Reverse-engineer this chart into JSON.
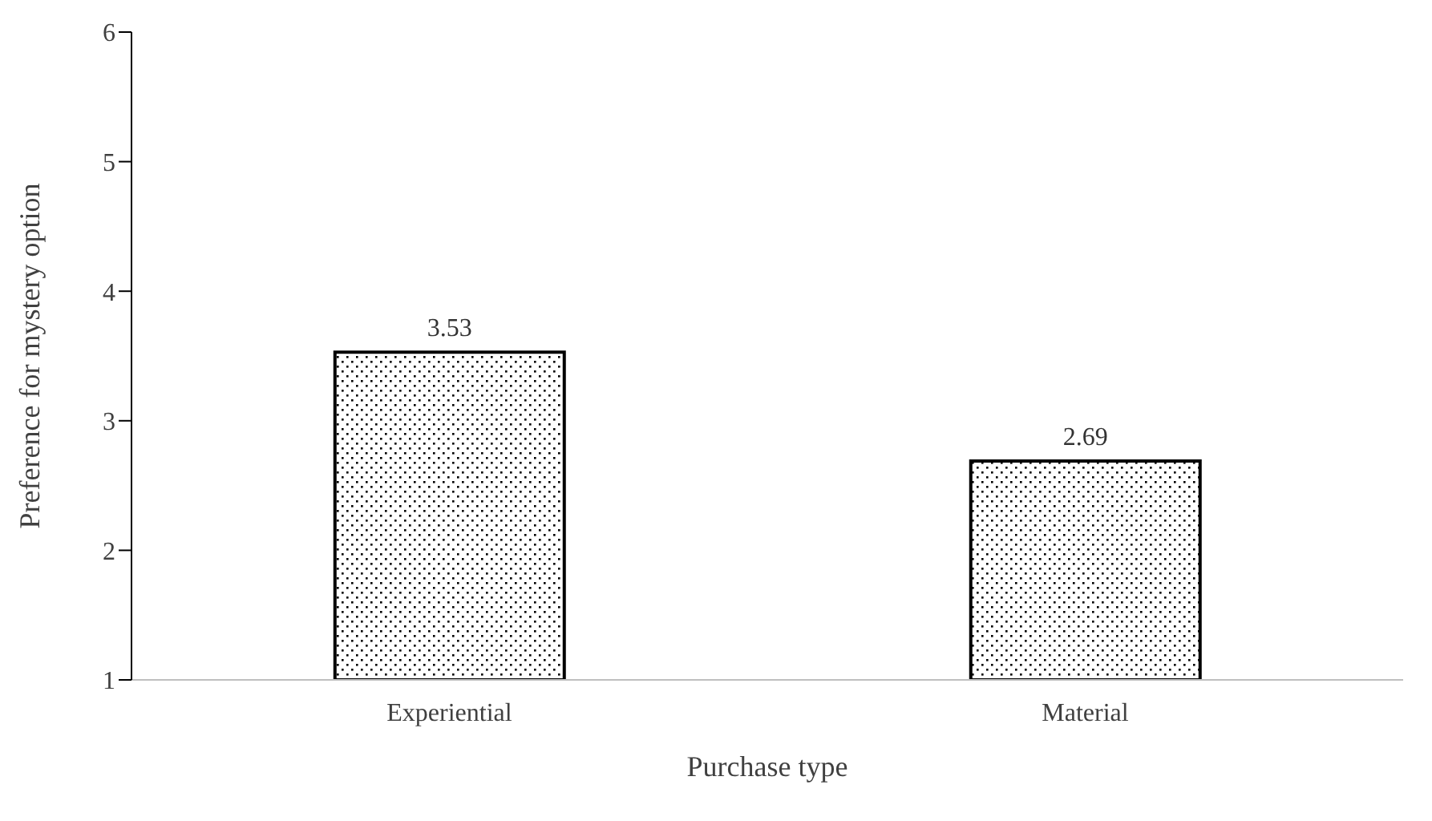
{
  "chart_data": {
    "type": "bar",
    "xlabel": "Purchase type",
    "ylabel": "Preference for mystery option",
    "categories": [
      "Experiential",
      "Material"
    ],
    "values": [
      3.53,
      2.69
    ],
    "color": "#000000",
    "ylim": [
      1,
      6
    ],
    "yticks": [
      1,
      2,
      3,
      4,
      5,
      6
    ],
    "data_labels": true
  }
}
